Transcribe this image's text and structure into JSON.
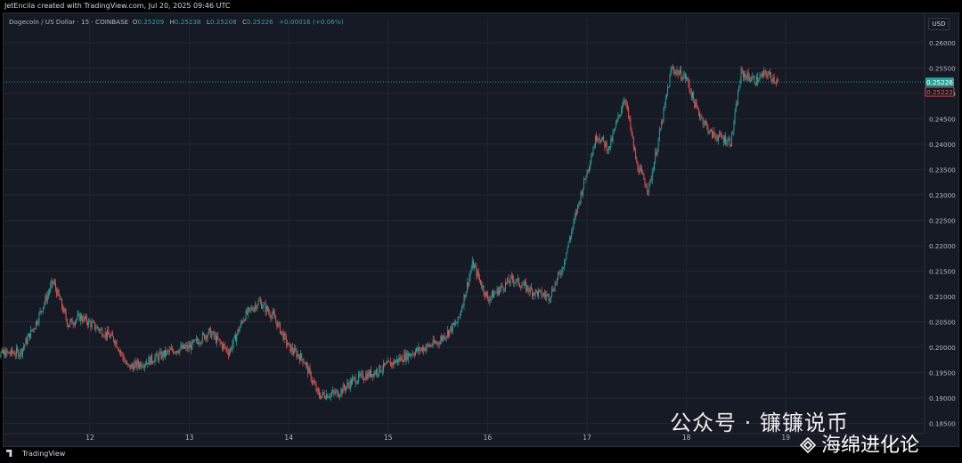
{
  "header": {
    "created_by": "JetEncila created with TradingView.com, Jul 20, 2025 09:46 UTC"
  },
  "legend": {
    "symbol": "Dogecoin / US Dollar · 15 · COINBASE",
    "o_label": "O",
    "o": "0.25209",
    "h_label": "H",
    "h": "0.25238",
    "l_label": "L",
    "l": "0.25208",
    "c_label": "C",
    "c": "0.25226",
    "change": "+0.00016 (+0.06%)"
  },
  "currency_button": "USD",
  "footer": {
    "logo_text": "TradingView"
  },
  "watermark": {
    "line1": "公众号 · 镰镰说币",
    "line2": "海绵进化论"
  },
  "colors": {
    "up": "#26a69a",
    "down": "#ef5350",
    "bg": "#161a25",
    "grid": "#222630"
  },
  "chart_data": {
    "type": "candlestick",
    "y_ticks": [
      "0.26000",
      "0.25500",
      "0.25000",
      "0.24500",
      "0.24000",
      "0.23500",
      "0.23000",
      "0.22500",
      "0.22000",
      "0.21500",
      "0.21000",
      "0.20500",
      "0.20000",
      "0.19500",
      "0.19000",
      "0.18500"
    ],
    "x_ticks": [
      "12",
      "13",
      "14",
      "15",
      "16",
      "17",
      "18",
      "19"
    ],
    "ylim": [
      0.1835,
      0.2635
    ],
    "last_price": "0.25226",
    "secondary_price": "0.25222",
    "path_points": [
      {
        "t": 0.0,
        "p": 0.1985
      },
      {
        "t": 0.3,
        "p": 0.199
      },
      {
        "t": 0.45,
        "p": 0.2045
      },
      {
        "t": 0.63,
        "p": 0.213
      },
      {
        "t": 0.78,
        "p": 0.2045
      },
      {
        "t": 0.9,
        "p": 0.206
      },
      {
        "t": 1.25,
        "p": 0.2015
      },
      {
        "t": 1.38,
        "p": 0.196
      },
      {
        "t": 1.55,
        "p": 0.197
      },
      {
        "t": 1.85,
        "p": 0.1995
      },
      {
        "t": 2.0,
        "p": 0.2
      },
      {
        "t": 2.2,
        "p": 0.203
      },
      {
        "t": 2.4,
        "p": 0.199
      },
      {
        "t": 2.55,
        "p": 0.206
      },
      {
        "t": 2.7,
        "p": 0.209
      },
      {
        "t": 2.85,
        "p": 0.206
      },
      {
        "t": 3.0,
        "p": 0.2
      },
      {
        "t": 3.15,
        "p": 0.1975
      },
      {
        "t": 3.3,
        "p": 0.1905
      },
      {
        "t": 3.5,
        "p": 0.191
      },
      {
        "t": 3.65,
        "p": 0.1935
      },
      {
        "t": 3.85,
        "p": 0.195
      },
      {
        "t": 4.05,
        "p": 0.197
      },
      {
        "t": 4.25,
        "p": 0.199
      },
      {
        "t": 4.5,
        "p": 0.201
      },
      {
        "t": 4.7,
        "p": 0.205
      },
      {
        "t": 4.85,
        "p": 0.2165
      },
      {
        "t": 5.0,
        "p": 0.2095
      },
      {
        "t": 5.25,
        "p": 0.2135
      },
      {
        "t": 5.45,
        "p": 0.211
      },
      {
        "t": 5.62,
        "p": 0.21
      },
      {
        "t": 5.75,
        "p": 0.2155
      },
      {
        "t": 5.95,
        "p": 0.231
      },
      {
        "t": 6.1,
        "p": 0.242
      },
      {
        "t": 6.22,
        "p": 0.239
      },
      {
        "t": 6.38,
        "p": 0.2495
      },
      {
        "t": 6.5,
        "p": 0.236
      },
      {
        "t": 6.62,
        "p": 0.231
      },
      {
        "t": 6.75,
        "p": 0.244
      },
      {
        "t": 6.85,
        "p": 0.255
      },
      {
        "t": 7.0,
        "p": 0.253
      },
      {
        "t": 7.1,
        "p": 0.247
      },
      {
        "t": 7.25,
        "p": 0.242
      },
      {
        "t": 7.45,
        "p": 0.2405
      },
      {
        "t": 7.55,
        "p": 0.254
      },
      {
        "t": 7.7,
        "p": 0.2525
      },
      {
        "t": 7.8,
        "p": 0.254
      },
      {
        "t": 7.93,
        "p": 0.2523
      }
    ]
  }
}
